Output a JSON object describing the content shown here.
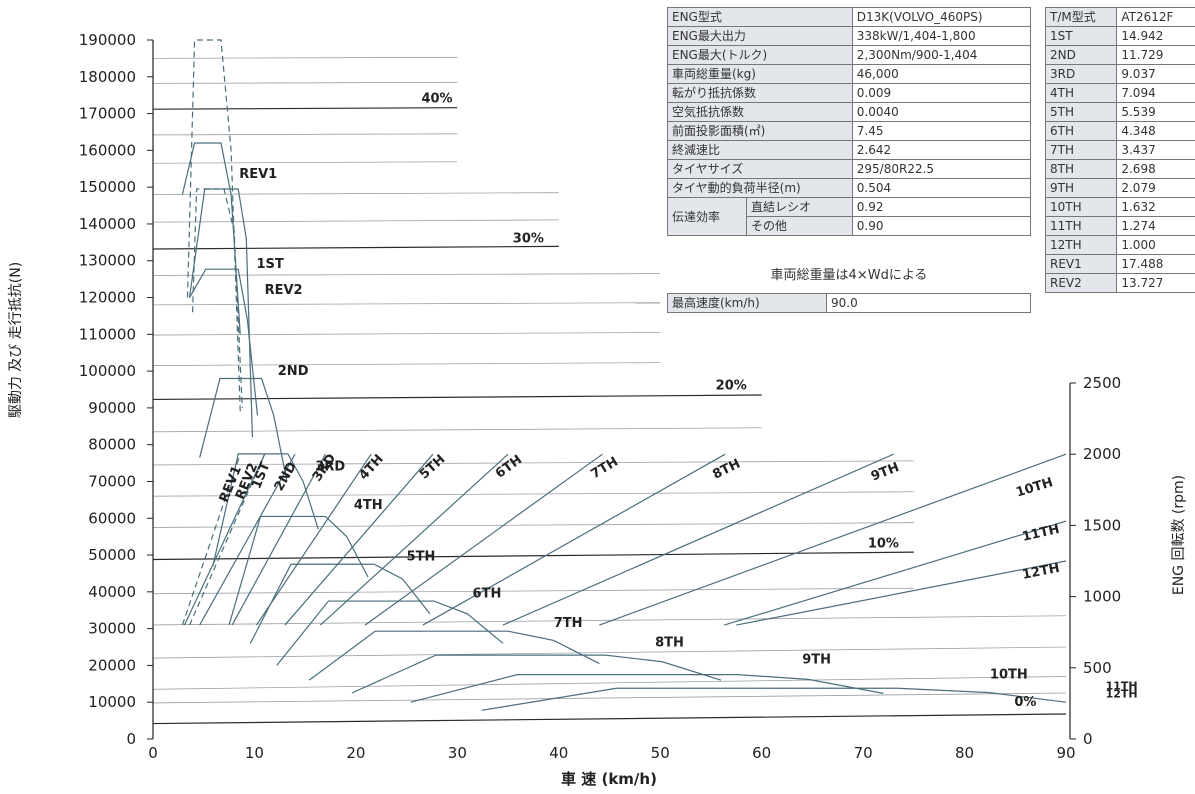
{
  "chart_data": {
    "type": "line",
    "xlabel": "車 速 (km/h)",
    "ylabel_left": "駆動力 及び 走行抵抗(N)",
    "ylabel_right": "ENG 回転数 (rpm)",
    "xlim": [
      0,
      90
    ],
    "ylim": [
      0,
      190000
    ],
    "rpm_lim": [
      0,
      2500
    ],
    "x_ticks": [
      "0",
      "10",
      "20",
      "30",
      "40",
      "50",
      "60",
      "70",
      "80",
      "90"
    ],
    "y_ticks": [
      "0",
      "10000",
      "20000",
      "30000",
      "40000",
      "50000",
      "60000",
      "70000",
      "80000",
      "90000",
      "100000",
      "110000",
      "120000",
      "130000",
      "140000",
      "150000",
      "160000",
      "170000",
      "180000",
      "190000"
    ],
    "rpm_ticks": [
      "0",
      "500",
      "1000",
      "1500",
      "2000",
      "2500"
    ],
    "resistance": [
      {
        "name": "0%",
        "x": [
          0,
          90
        ],
        "y": [
          4200,
          6800
        ],
        "bold": true,
        "label_at": [
          86,
          9000
        ]
      },
      {
        "name": "10%",
        "x": [
          0,
          75
        ],
        "y": [
          48800,
          50800
        ],
        "bold": true,
        "label_at": [
          72,
          52000
        ]
      },
      {
        "name": "20%",
        "x": [
          0,
          60
        ],
        "y": [
          92300,
          93500
        ],
        "bold": true,
        "label_at": [
          57,
          95000
        ]
      },
      {
        "name": "30%",
        "x": [
          0,
          40
        ],
        "y": [
          133200,
          133900
        ],
        "bold": true,
        "label_at": [
          37,
          135000
        ]
      },
      {
        "name": "40%",
        "x": [
          0,
          30
        ],
        "y": [
          171200,
          171600
        ],
        "bold": true,
        "label_at": [
          28,
          173000
        ]
      },
      {
        "name": "",
        "x": [
          0,
          90
        ],
        "y": [
          9800,
          12500
        ],
        "bold": false
      },
      {
        "name": "",
        "x": [
          0,
          90
        ],
        "y": [
          13500,
          17000
        ],
        "bold": false
      },
      {
        "name": "",
        "x": [
          0,
          90
        ],
        "y": [
          22000,
          25000
        ],
        "bold": false
      },
      {
        "name": "",
        "x": [
          0,
          90
        ],
        "y": [
          31000,
          33500
        ],
        "bold": false
      },
      {
        "name": "",
        "x": [
          0,
          75
        ],
        "y": [
          39500,
          41000
        ],
        "bold": false
      },
      {
        "name": "",
        "x": [
          0,
          75
        ],
        "y": [
          57500,
          58800
        ],
        "bold": false
      },
      {
        "name": "",
        "x": [
          0,
          75
        ],
        "y": [
          66000,
          67200
        ],
        "bold": false
      },
      {
        "name": "",
        "x": [
          0,
          75
        ],
        "y": [
          74500,
          75600
        ],
        "bold": false
      },
      {
        "name": "",
        "x": [
          0,
          60
        ],
        "y": [
          83500,
          84600
        ],
        "bold": false
      },
      {
        "name": "",
        "x": [
          0,
          50
        ],
        "y": [
          101500,
          102300
        ],
        "bold": false
      },
      {
        "name": "",
        "x": [
          0,
          50
        ],
        "y": [
          109800,
          110500
        ],
        "bold": false
      },
      {
        "name": "",
        "x": [
          0,
          50
        ],
        "y": [
          118000,
          118600
        ],
        "bold": false
      },
      {
        "name": "",
        "x": [
          0,
          50
        ],
        "y": [
          126000,
          126500
        ],
        "bold": false
      },
      {
        "name": "",
        "x": [
          0,
          40
        ],
        "y": [
          140500,
          141100
        ],
        "bold": false
      },
      {
        "name": "",
        "x": [
          0,
          40
        ],
        "y": [
          148000,
          148500
        ],
        "bold": false
      },
      {
        "name": "",
        "x": [
          0,
          30
        ],
        "y": [
          156500,
          156900
        ],
        "bold": false
      },
      {
        "name": "",
        "x": [
          0,
          30
        ],
        "y": [
          164200,
          164500
        ],
        "bold": false
      },
      {
        "name": "",
        "x": [
          0,
          30
        ],
        "y": [
          178200,
          178500
        ],
        "bold": false
      },
      {
        "name": "",
        "x": [
          0,
          30
        ],
        "y": [
          185000,
          185300
        ],
        "bold": false
      }
    ],
    "traction": [
      {
        "name": "1ST",
        "x": [
          3.6,
          5.2,
          8.4,
          9.3,
          10.3
        ],
        "y": [
          120000,
          127700,
          127700,
          114000,
          88000
        ],
        "dashed": false,
        "label_at": [
          10.2,
          128000
        ]
      },
      {
        "name": "2ND",
        "x": [
          4.6,
          6.6,
          10.7,
          11.9,
          13.2
        ],
        "y": [
          76500,
          98000,
          98000,
          88000,
          70000
        ],
        "dashed": false,
        "label_at": [
          12.3,
          99000
        ]
      },
      {
        "name": "3RD",
        "x": [
          5.9,
          8.4,
          13.3,
          14.8,
          16.3
        ],
        "y": [
          47000,
          77500,
          77500,
          70000,
          57000
        ],
        "dashed": false,
        "label_at": [
          16,
          73000
        ]
      },
      {
        "name": "4TH",
        "x": [
          7.5,
          10.6,
          17,
          19.1,
          21.2
        ],
        "y": [
          31000,
          60500,
          60500,
          55000,
          44000
        ],
        "dashed": false,
        "label_at": [
          19.8,
          62500
        ]
      },
      {
        "name": "5TH",
        "x": [
          9.6,
          13.6,
          21.8,
          24.6,
          27.3
        ],
        "y": [
          26000,
          47500,
          47500,
          43500,
          34000
        ],
        "dashed": false,
        "label_at": [
          25,
          48500
        ]
      },
      {
        "name": "6TH",
        "x": [
          12.2,
          17.3,
          27.7,
          31,
          34.5
        ],
        "y": [
          20000,
          37500,
          37500,
          34000,
          26000
        ],
        "dashed": false,
        "label_at": [
          31.5,
          38500
        ]
      },
      {
        "name": "7TH",
        "x": [
          15.4,
          21.9,
          35,
          39.5,
          44
        ],
        "y": [
          16000,
          29300,
          29300,
          26800,
          20500
        ],
        "dashed": false,
        "label_at": [
          39.5,
          30500
        ]
      },
      {
        "name": "8TH",
        "x": [
          19.6,
          27.9,
          44.6,
          50.2,
          56
        ],
        "y": [
          12500,
          22800,
          22800,
          21000,
          16000
        ],
        "dashed": false,
        "label_at": [
          49.5,
          25200
        ]
      },
      {
        "name": "9TH",
        "x": [
          25.4,
          35.9,
          57.6,
          64.6,
          72
        ],
        "y": [
          10000,
          17500,
          17500,
          16200,
          12400
        ],
        "dashed": false,
        "label_at": [
          64,
          20500
        ]
      },
      {
        "name": "10TH",
        "x": [
          32.4,
          45.7,
          73.4,
          82.5,
          90
        ],
        "y": [
          7800,
          13800,
          13800,
          12600,
          10000
        ],
        "dashed": false,
        "label_at": [
          82.5,
          16500
        ]
      },
      {
        "name": "REV1",
        "x": [
          2.9,
          4.1,
          6.7,
          7.7,
          8.6
        ],
        "y": [
          148000,
          162000,
          162000,
          148000,
          110000
        ],
        "dashed": false,
        "label_at": [
          8.5,
          152500
        ]
      },
      {
        "name": "REV2",
        "x": [
          3.6,
          5.1,
          8.4,
          9.2,
          9.8
        ],
        "y": [
          120000,
          149500,
          149500,
          136000,
          82000
        ],
        "dashed": false,
        "label_at": [
          11,
          121000
        ]
      }
    ],
    "traction_dashed": [
      {
        "name": "",
        "x": [
          3.4,
          4.1,
          6.7,
          7.7,
          8.6
        ],
        "y": [
          120000,
          190000,
          190000,
          160000,
          89000
        ]
      },
      {
        "name": "",
        "x": [
          3.9,
          4.3,
          7.0,
          8.0,
          8.8
        ],
        "y": [
          116000,
          149500,
          149500,
          138000,
          90000
        ]
      }
    ],
    "rpm_lines": [
      {
        "name": "REV1",
        "x": [
          2.9,
          8.6
        ],
        "rpm": [
          800,
          2000
        ],
        "dashed": true,
        "label_at": [
          8,
          1780
        ],
        "rot": -68
      },
      {
        "name": "REV2",
        "x": [
          3.6,
          11
        ],
        "rpm": [
          800,
          2000
        ],
        "dashed": true,
        "label_at": [
          9.6,
          1800
        ],
        "rot": -68
      },
      {
        "name": "1ST",
        "x": [
          3.1,
          11
        ],
        "rpm": [
          800,
          2000
        ],
        "dashed": false,
        "label_at": [
          11,
          1840
        ],
        "rot": -68
      },
      {
        "name": "2ND",
        "x": [
          4.6,
          14
        ],
        "rpm": [
          800,
          2000
        ],
        "dashed": false,
        "label_at": [
          13.4,
          1830
        ],
        "rot": -60
      },
      {
        "name": "3RD",
        "x": [
          7.8,
          17
        ],
        "rpm": [
          800,
          2000
        ],
        "dashed": false,
        "label_at": [
          17.2,
          1890
        ],
        "rot": -55
      },
      {
        "name": "4TH",
        "x": [
          10.2,
          21.5
        ],
        "rpm": [
          800,
          2000
        ],
        "dashed": false,
        "label_at": [
          21.8,
          1890
        ],
        "rot": -48
      },
      {
        "name": "5TH",
        "x": [
          13,
          27.6
        ],
        "rpm": [
          800,
          2000
        ],
        "dashed": false,
        "label_at": [
          27.8,
          1890
        ],
        "rot": -42
      },
      {
        "name": "6TH",
        "x": [
          16.5,
          35
        ],
        "rpm": [
          800,
          2000
        ],
        "dashed": false,
        "label_at": [
          35.3,
          1890
        ],
        "rot": -36
      },
      {
        "name": "7TH",
        "x": [
          20.9,
          44.3
        ],
        "rpm": [
          800,
          2000
        ],
        "dashed": false,
        "label_at": [
          44.7,
          1880
        ],
        "rot": -31
      },
      {
        "name": "8TH",
        "x": [
          26.6,
          56.4
        ],
        "rpm": [
          800,
          2000
        ],
        "dashed": false,
        "label_at": [
          56.7,
          1870
        ],
        "rot": -26
      },
      {
        "name": "9TH",
        "x": [
          34.5,
          73
        ],
        "rpm": [
          800,
          2000
        ],
        "dashed": false,
        "label_at": [
          72.3,
          1850
        ],
        "rot": -21
      },
      {
        "name": "10TH",
        "x": [
          44,
          90
        ],
        "rpm": [
          800,
          2000
        ],
        "dashed": false,
        "label_at": [
          87,
          1740
        ],
        "rot": -17
      },
      {
        "name": "11TH",
        "x": [
          56.3,
          90
        ],
        "rpm": [
          800,
          1530
        ],
        "dashed": false,
        "label_at": [
          87.6,
          1420
        ],
        "rot": -13
      },
      {
        "name": "12TH",
        "x": [
          57.5,
          90
        ],
        "rpm": [
          800,
          1250
        ],
        "dashed": false,
        "label_at": [
          87.6,
          1150
        ],
        "rot": -11
      }
    ],
    "rpm_flat_labels": [
      {
        "name": "11TH",
        "x": 87.4,
        "rpm": 375,
        "font": 11
      },
      {
        "name": "12TH",
        "x": 87.4,
        "rpm": 320,
        "font": 11
      }
    ],
    "colors": {
      "traction": "#4a6e7c",
      "resistance": "#2a2a2a",
      "grid": "#9aa0a6",
      "axis": "#222222"
    }
  },
  "spec_table": {
    "rows": [
      {
        "k": "ENG型式",
        "v": "D13K(VOLVO_460PS)"
      },
      {
        "k": "ENG最大出力",
        "v": "338kW/1,404-1,800"
      },
      {
        "k": "ENG最大(トルク)",
        "v": "2,300Nm/900-1,404"
      },
      {
        "k": "車両総重量(kg)",
        "v": "46,000"
      },
      {
        "k": "転がり抵抗係数",
        "v": "0.009"
      },
      {
        "k": "空気抵抗係数",
        "v": "0.0040"
      },
      {
        "k": "前面投影面積(㎡)",
        "v": "7.45"
      },
      {
        "k": "終減速比",
        "v": "2.642"
      },
      {
        "k": "タイヤサイズ",
        "v": "295/80R22.5"
      },
      {
        "k": "タイヤ動的負荷半径(m)",
        "v": "0.504"
      }
    ],
    "efficiency": {
      "k": "伝達効率",
      "sub1": "直結レシオ",
      "v1": "0.92",
      "sub2": "その他",
      "v2": "0.90"
    }
  },
  "note": "車両総重量は4×Wdによる",
  "max_speed": {
    "k": "最高速度(km/h)",
    "v": "90.0"
  },
  "tm_table": {
    "header": {
      "k": "T/M型式",
      "v": "AT2612F"
    },
    "rows": [
      {
        "k": "1ST",
        "v": "14.942"
      },
      {
        "k": "2ND",
        "v": "11.729"
      },
      {
        "k": "3RD",
        "v": "9.037"
      },
      {
        "k": "4TH",
        "v": "7.094"
      },
      {
        "k": "5TH",
        "v": "5.539"
      },
      {
        "k": "6TH",
        "v": "4.348"
      },
      {
        "k": "7TH",
        "v": "3.437"
      },
      {
        "k": "8TH",
        "v": "2.698"
      },
      {
        "k": "9TH",
        "v": "2.079"
      },
      {
        "k": "10TH",
        "v": "1.632"
      },
      {
        "k": "11TH",
        "v": "1.274"
      },
      {
        "k": "12TH",
        "v": "1.000"
      },
      {
        "k": "REV1",
        "v": "17.488"
      },
      {
        "k": "REV2",
        "v": "13.727"
      }
    ]
  }
}
